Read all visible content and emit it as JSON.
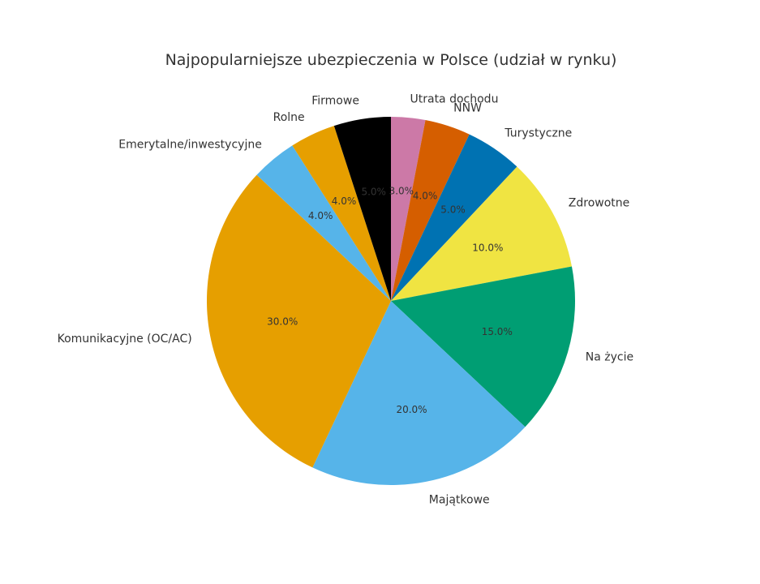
{
  "chart_data": {
    "type": "pie",
    "title": "Najpopularniejsze ubezpieczenia w Polsce (udział w rynku)",
    "start_angle_deg": 90,
    "direction": "clockwise",
    "autopct_format": "{v}%",
    "slices": [
      {
        "label": "Utrata dochodu",
        "value": 3.0,
        "pct_label": "3.0%",
        "color": "#CC79A7"
      },
      {
        "label": "NNW",
        "value": 4.0,
        "pct_label": "4.0%",
        "color": "#D55E00"
      },
      {
        "label": "Turystyczne",
        "value": 5.0,
        "pct_label": "5.0%",
        "color": "#0072B2"
      },
      {
        "label": "Zdrowotne",
        "value": 10.0,
        "pct_label": "10.0%",
        "color": "#F0E442"
      },
      {
        "label": "Na życie",
        "value": 15.0,
        "pct_label": "15.0%",
        "color": "#009E73"
      },
      {
        "label": "Majątkowe",
        "value": 20.0,
        "pct_label": "20.0%",
        "color": "#56B4E9"
      },
      {
        "label": "Komunikacyjne (OC/AC)",
        "value": 30.0,
        "pct_label": "30.0%",
        "color": "#E69F00"
      },
      {
        "label": "Emerytalne/inwestycyjne",
        "value": 4.0,
        "pct_label": "4.0%",
        "color": "#56B4E9"
      },
      {
        "label": "Rolne",
        "value": 4.0,
        "pct_label": "4.0%",
        "color": "#E69F00"
      },
      {
        "label": "Firmowe",
        "value": 5.0,
        "pct_label": "5.0%",
        "color": "#000000"
      }
    ]
  }
}
